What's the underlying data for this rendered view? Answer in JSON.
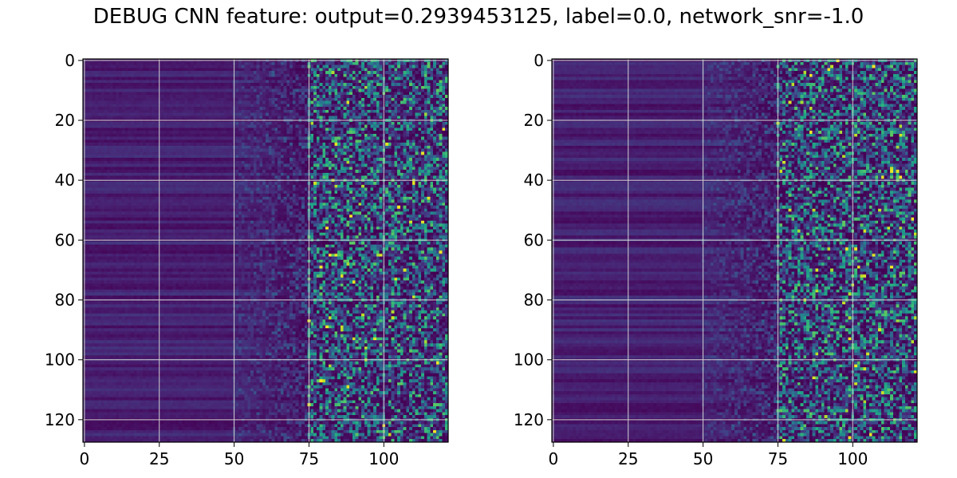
{
  "title": "DEBUG CNN feature: output=0.2939453125, label=0.0, network_snr=-1.0",
  "colors": {
    "colormap": "viridis",
    "grid": "#d0d0d0"
  },
  "chart_data": [
    {
      "type": "heatmap",
      "title": "",
      "xlabel": "",
      "ylabel": "",
      "xlim": [
        -0.5,
        121.5
      ],
      "ylim": [
        127.5,
        -0.5
      ],
      "n_cols": 122,
      "n_rows": 128,
      "xticks": [
        0,
        25,
        50,
        75,
        100
      ],
      "yticks": [
        0,
        20,
        40,
        60,
        80,
        100,
        120
      ],
      "grid": true,
      "seed": 11
    },
    {
      "type": "heatmap",
      "title": "",
      "xlabel": "",
      "ylabel": "",
      "xlim": [
        -0.5,
        121.5
      ],
      "ylim": [
        127.5,
        -0.5
      ],
      "n_cols": 122,
      "n_rows": 128,
      "xticks": [
        0,
        25,
        50,
        75,
        100
      ],
      "yticks": [
        0,
        20,
        40,
        60,
        80,
        100,
        120
      ],
      "grid": true,
      "seed": 29
    }
  ]
}
